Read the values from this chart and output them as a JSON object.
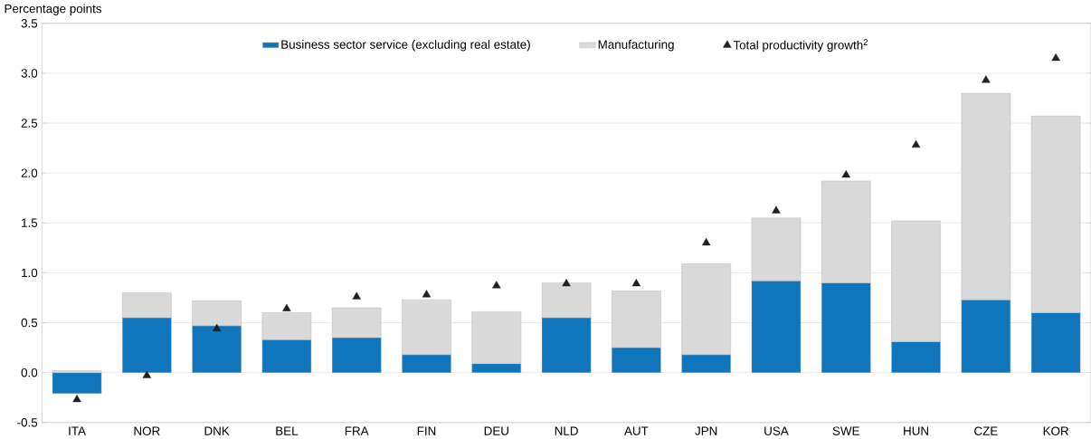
{
  "chart_data": {
    "type": "bar",
    "stacked": true,
    "ylabel": "Percentage points",
    "categories": [
      "ITA",
      "NOR",
      "DNK",
      "BEL",
      "FRA",
      "FIN",
      "DEU",
      "NLD",
      "AUT",
      "JPN",
      "USA",
      "SWE",
      "HUN",
      "CZE",
      "KOR"
    ],
    "series": [
      {
        "name": "Business sector service (excluding real estate)",
        "color": "#0f75bc",
        "values": [
          -0.21,
          0.55,
          0.47,
          0.33,
          0.35,
          0.18,
          0.09,
          0.55,
          0.25,
          0.18,
          0.92,
          0.9,
          0.31,
          0.73,
          0.6
        ]
      },
      {
        "name": "Manufacturing",
        "color": "#d9d9d9",
        "values": [
          0.02,
          0.25,
          0.25,
          0.27,
          0.3,
          0.55,
          0.52,
          0.35,
          0.57,
          0.91,
          0.63,
          1.02,
          1.21,
          2.07,
          1.97
        ]
      },
      {
        "name": "Total productivity growth$^{2}$",
        "type": "scatter",
        "marker": "triangle",
        "color": "#231f20",
        "values": [
          -0.27,
          -0.03,
          0.44,
          0.64,
          0.76,
          0.78,
          0.87,
          0.89,
          0.89,
          1.3,
          1.62,
          1.98,
          2.28,
          2.93,
          3.15
        ]
      }
    ],
    "ylim": [
      -0.5,
      3.5
    ],
    "yticks": [
      -0.5,
      {
        "value": 0,
        "label": "0.0"
      },
      0.5,
      {
        "value": 1,
        "label": "1.0"
      },
      1.5,
      {
        "value": 2,
        "label": "2.0"
      },
      2.5,
      {
        "value": 3,
        "label": "3.0"
      },
      3.5
    ],
    "grid": "y",
    "legend": "top"
  }
}
